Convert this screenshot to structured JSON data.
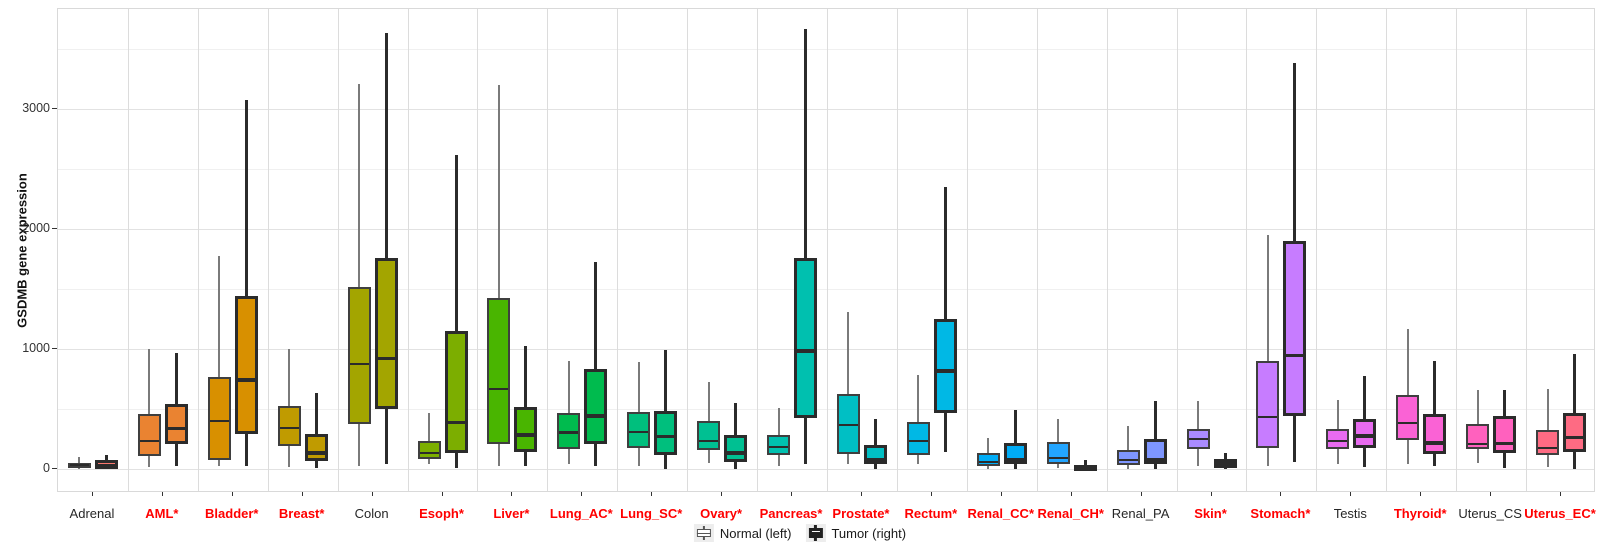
{
  "chart_data": {
    "type": "boxplot",
    "title": "",
    "ylabel": "GSDMB gene expression",
    "yticks": [
      0,
      1000,
      2000,
      3000
    ],
    "ylim": [
      -200,
      3836
    ],
    "grid": {
      "major": [
        0,
        1000,
        2000,
        3000
      ],
      "minor": [
        500,
        1500,
        2500,
        3500
      ]
    },
    "legend": {
      "normal": "Normal (left)",
      "tumor": "Tumor (right)"
    },
    "legend_position": "bottom-center",
    "label_colors": {
      "significant": "#FF0000",
      "default": "#262626"
    },
    "box_format": "[whisker_low, q1, median, q3, whisker_high]",
    "categories": [
      {
        "label": "Adrenal",
        "significant": false,
        "color": "#F8766D",
        "normal": [
          0,
          10,
          33,
          52,
          100
        ],
        "tumor": [
          0,
          5,
          33,
          75,
          120
        ]
      },
      {
        "label": "AML*",
        "significant": true,
        "color": "#EA8331",
        "normal": [
          15,
          110,
          236,
          463,
          1000
        ],
        "tumor": [
          28,
          214,
          339,
          541,
          971
        ]
      },
      {
        "label": "Bladder*",
        "significant": true,
        "color": "#D89000",
        "normal": [
          30,
          75,
          402,
          769,
          1780
        ],
        "tumor": [
          28,
          292,
          744,
          1444,
          3075
        ]
      },
      {
        "label": "Breast*",
        "significant": true,
        "color": "#C09B00",
        "normal": [
          22,
          194,
          342,
          527,
          1000
        ],
        "tumor": [
          14,
          69,
          138,
          297,
          638
        ]
      },
      {
        "label": "Colon",
        "significant": false,
        "color": "#A3A500",
        "normal": [
          28,
          375,
          875,
          1519,
          3213
        ],
        "tumor": [
          42,
          500,
          925,
          1763,
          3640
        ]
      },
      {
        "label": "Esoph*",
        "significant": true,
        "color": "#7CAE00",
        "normal": [
          42,
          83,
          138,
          236,
          472
        ],
        "tumor": [
          14,
          138,
          389,
          1153,
          2617
        ]
      },
      {
        "label": "Liver*",
        "significant": true,
        "color": "#49B500",
        "normal": [
          28,
          214,
          667,
          1430,
          3200
        ],
        "tumor": [
          28,
          147,
          286,
          522,
          1028
        ]
      },
      {
        "label": "Lung_AC*",
        "significant": true,
        "color": "#00BB4E",
        "normal": [
          42,
          167,
          306,
          472,
          903
        ],
        "tumor": [
          30,
          208,
          444,
          833,
          1728
        ]
      },
      {
        "label": "Lung_SC*",
        "significant": true,
        "color": "#00BF7D",
        "normal": [
          28,
          175,
          314,
          478,
          897
        ],
        "tumor": [
          0,
          117,
          272,
          486,
          992
        ]
      },
      {
        "label": "Ovary*",
        "significant": true,
        "color": "#00C092",
        "normal": [
          55,
          158,
          236,
          403,
          730
        ],
        "tumor": [
          0,
          61,
          138,
          286,
          555
        ]
      },
      {
        "label": "Pancreas*",
        "significant": true,
        "color": "#00C0AF",
        "normal": [
          28,
          117,
          186,
          283,
          513
        ],
        "tumor": [
          44,
          430,
          986,
          1758,
          3670
        ]
      },
      {
        "label": "Prostate*",
        "significant": true,
        "color": "#00BFC4",
        "normal": [
          42,
          130,
          367,
          630,
          1311
        ],
        "tumor": [
          0,
          47,
          83,
          203,
          422
        ]
      },
      {
        "label": "Rectum*",
        "significant": true,
        "color": "#00B8E5",
        "normal": [
          47,
          119,
          236,
          397,
          783
        ],
        "tumor": [
          144,
          472,
          819,
          1250,
          2353
        ]
      },
      {
        "label": "Renal_CC*",
        "significant": true,
        "color": "#00ACF6",
        "normal": [
          3,
          28,
          61,
          138,
          264
        ],
        "tumor": [
          0,
          42,
          83,
          222,
          492
        ]
      },
      {
        "label": "Renal_CH*",
        "significant": true,
        "color": "#23A5FF",
        "normal": [
          8,
          47,
          97,
          230,
          417
        ],
        "tumor": [
          0,
          0,
          15,
          36,
          80
        ]
      },
      {
        "label": "Renal_PA",
        "significant": false,
        "color": "#7E96FF",
        "normal": [
          0,
          36,
          75,
          158,
          361
        ],
        "tumor": [
          0,
          47,
          83,
          250,
          569
        ]
      },
      {
        "label": "Skin*",
        "significant": true,
        "color": "#AA8BFF",
        "normal": [
          28,
          167,
          250,
          333,
          569
        ],
        "tumor": [
          0,
          14,
          50,
          83,
          138
        ]
      },
      {
        "label": "Stomach*",
        "significant": true,
        "color": "#C77CFF",
        "normal": [
          30,
          180,
          436,
          903,
          1950
        ],
        "tumor": [
          60,
          444,
          950,
          1900,
          3390
        ]
      },
      {
        "label": "Testis",
        "significant": false,
        "color": "#E86BF0",
        "normal": [
          42,
          167,
          236,
          339,
          575
        ],
        "tumor": [
          19,
          175,
          278,
          422,
          778
        ]
      },
      {
        "label": "Thyroid*",
        "significant": true,
        "color": "#FA62D5",
        "normal": [
          44,
          242,
          389,
          616,
          1170
        ],
        "tumor": [
          28,
          125,
          219,
          458,
          900
        ]
      },
      {
        "label": "Uterus_CS",
        "significant": false,
        "color": "#FF61BE",
        "normal": [
          55,
          167,
          214,
          380,
          660
        ],
        "tumor": [
          8,
          138,
          214,
          444,
          665
        ]
      },
      {
        "label": "Uterus_EC*",
        "significant": true,
        "color": "#FE6B83",
        "normal": [
          15,
          119,
          175,
          325,
          670
        ],
        "tumor": [
          0,
          147,
          265,
          467,
          965
        ]
      }
    ]
  }
}
